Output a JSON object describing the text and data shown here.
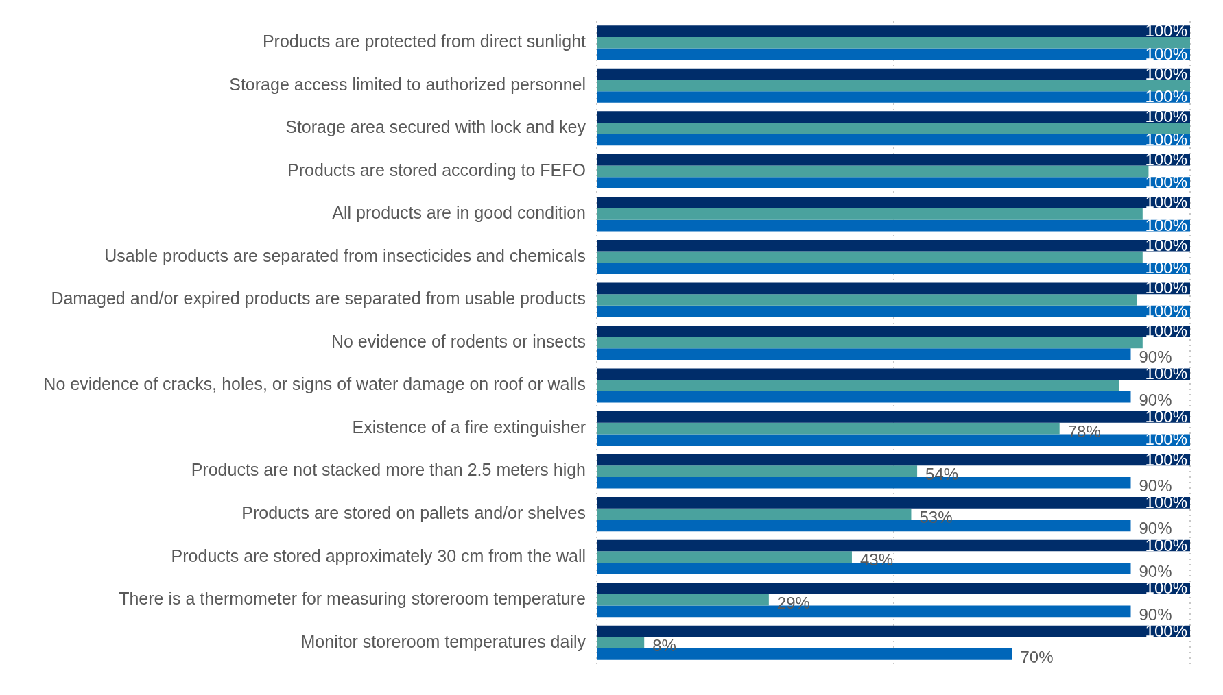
{
  "chart_data": {
    "type": "bar",
    "orientation": "horizontal",
    "categories": [
      "Products are protected from direct sunlight",
      "Storage access limited to authorized personnel",
      "Storage area secured with lock and key",
      "Products are stored according to FEFO",
      "All products are in good condition",
      "Usable products are separated from insecticides and chemicals",
      "Damaged and/or expired products are separated from usable products",
      "No evidence of rodents or insects",
      "No evidence of cracks, holes, or signs of water damage on roof or walls",
      "Existence of a fire extinguisher",
      "Products are not stacked more than 2.5 meters high",
      "Products are stored on pallets and/or shelves",
      "Products are stored approximately 30 cm from the wall",
      "There is a thermometer for measuring storeroom temperature",
      "Monitor storeroom temperatures daily"
    ],
    "series": [
      {
        "color": "#002d6a",
        "values": [
          100,
          100,
          100,
          100,
          100,
          100,
          100,
          100,
          100,
          100,
          100,
          100,
          100,
          100,
          100
        ],
        "value_labels": [
          "100%",
          "100%",
          "100%",
          "100%",
          "100%",
          "100%",
          "100%",
          "100%",
          "100%",
          "100%",
          "100%",
          "100%",
          "100%",
          "100%",
          "100%"
        ]
      },
      {
        "color": "#4aa29e",
        "values": [
          100,
          100,
          100,
          93,
          92,
          92,
          91,
          92,
          88,
          78,
          54,
          53,
          43,
          29,
          8
        ],
        "value_labels": [
          null,
          null,
          null,
          null,
          null,
          null,
          null,
          null,
          null,
          "78%",
          "54%",
          "53%",
          "43%",
          "29%",
          "8%"
        ]
      },
      {
        "color": "#0066b9",
        "values": [
          100,
          100,
          100,
          100,
          100,
          100,
          100,
          90,
          90,
          100,
          90,
          90,
          90,
          90,
          70
        ],
        "value_labels": [
          "100%",
          "100%",
          "100%",
          "100%",
          "100%",
          "100%",
          "100%",
          "90%",
          "90%",
          "100%",
          "90%",
          "90%",
          "90%",
          "90%",
          "70%"
        ]
      }
    ],
    "xlim": [
      0,
      100
    ],
    "xticks": [
      {
        "value": 0,
        "label": null
      },
      {
        "value": 50,
        "label": null
      },
      {
        "value": 100,
        "label": null
      }
    ],
    "grid": "x",
    "tick_labels": "y",
    "legend": false
  }
}
